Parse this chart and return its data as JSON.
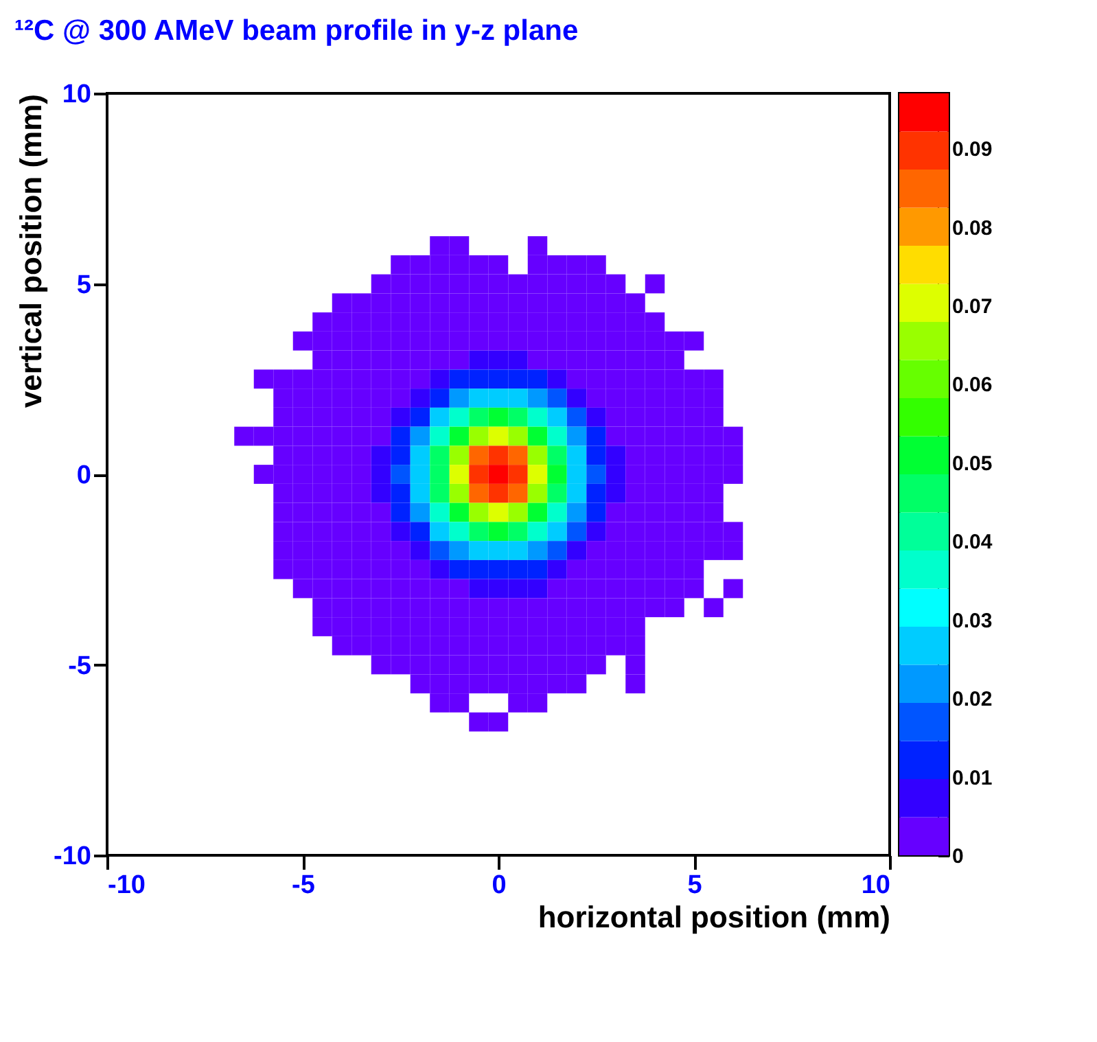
{
  "chart_data": {
    "type": "heatmap",
    "title": "¹²C @ 300 AMeV beam profile in y-z plane",
    "xlabel": "horizontal position (mm)",
    "ylabel": "vertical position (mm)",
    "x": [
      -6.5,
      -6.0,
      -5.5,
      -5.0,
      -4.5,
      -4.0,
      -3.5,
      -3.0,
      -2.5,
      -2.0,
      -1.5,
      -1.0,
      -0.5,
      0.0,
      0.5,
      1.0,
      1.5,
      2.0,
      2.5,
      3.0,
      3.5,
      4.0,
      4.5,
      5.0,
      5.5,
      6.0
    ],
    "y": [
      6.0,
      5.5,
      5.0,
      4.5,
      4.0,
      3.5,
      3.0,
      2.5,
      2.0,
      1.5,
      1.0,
      0.5,
      0.0,
      -0.5,
      -1.0,
      -1.5,
      -2.0,
      -2.5,
      -3.0,
      -3.5,
      -4.0,
      -4.5,
      -5.0,
      -5.5,
      -6.0,
      -6.5
    ],
    "xlim": [
      -10,
      10
    ],
    "xticks": [
      -10,
      -5,
      0,
      5,
      10
    ],
    "ylim": [
      -10,
      10
    ],
    "yticks": [
      -10,
      -5,
      0,
      5,
      10
    ],
    "clim": [
      0,
      0.097
    ],
    "cticks": [
      0,
      0.01,
      0.02,
      0.03,
      0.04,
      0.05,
      0.06,
      0.07,
      0.08,
      0.09
    ],
    "colors": [
      "#6600ff",
      "#3300ff",
      "#0022ff",
      "#0055ff",
      "#0099ff",
      "#00ccff",
      "#00ffff",
      "#00ffcc",
      "#00ff99",
      "#00ff66",
      "#00ff33",
      "#33ff00",
      "#66ff00",
      "#99ff00",
      "#ddff00",
      "#ffdd00",
      "#ff9900",
      "#ff6600",
      "#ff3300",
      "#ff0000"
    ],
    "cells": [
      [
        null,
        null,
        null,
        null,
        null,
        null,
        null,
        null,
        null,
        null,
        0.002,
        0.002,
        null,
        null,
        null,
        0.002,
        null,
        null,
        null,
        null,
        null,
        null,
        null,
        null,
        null,
        null
      ],
      [
        null,
        null,
        null,
        null,
        null,
        null,
        null,
        null,
        0.002,
        0.002,
        0.002,
        0.002,
        0.002,
        0.002,
        null,
        0.002,
        0.002,
        0.002,
        0.002,
        null,
        null,
        null,
        null,
        null,
        null,
        null
      ],
      [
        null,
        null,
        null,
        null,
        null,
        null,
        null,
        0.002,
        0.002,
        0.002,
        0.002,
        0.002,
        0.002,
        0.002,
        0.002,
        0.002,
        0.002,
        0.002,
        0.002,
        0.002,
        null,
        0.002,
        null,
        null,
        null,
        null
      ],
      [
        null,
        null,
        null,
        null,
        null,
        0.002,
        0.002,
        0.002,
        0.002,
        0.002,
        0.002,
        0.002,
        0.002,
        0.002,
        0.002,
        0.002,
        0.002,
        0.002,
        0.002,
        0.002,
        0.002,
        null,
        null,
        null,
        null,
        null
      ],
      [
        null,
        null,
        null,
        null,
        0.002,
        0.002,
        0.002,
        0.002,
        0.002,
        0.002,
        0.002,
        0.002,
        0.002,
        0.002,
        0.002,
        0.002,
        0.002,
        0.002,
        0.002,
        0.002,
        0.002,
        0.002,
        null,
        null,
        null,
        null
      ],
      [
        null,
        null,
        null,
        0.002,
        0.002,
        0.002,
        0.002,
        0.002,
        0.002,
        0.002,
        0.002,
        0.002,
        0.002,
        0.002,
        0.002,
        0.002,
        0.002,
        0.002,
        0.002,
        0.002,
        0.002,
        0.002,
        0.002,
        0.002,
        null,
        null
      ],
      [
        null,
        null,
        null,
        null,
        0.002,
        0.002,
        0.002,
        0.002,
        0.002,
        0.002,
        0.002,
        0.002,
        0.007,
        0.007,
        0.007,
        0.002,
        0.002,
        0.002,
        0.002,
        0.002,
        0.002,
        0.002,
        0.002,
        null,
        null,
        null
      ],
      [
        null,
        0.002,
        0.002,
        0.002,
        0.002,
        0.002,
        0.002,
        0.002,
        0.002,
        0.002,
        0.007,
        0.012,
        0.012,
        0.012,
        0.012,
        0.012,
        0.007,
        0.002,
        0.002,
        0.002,
        0.002,
        0.002,
        0.002,
        0.002,
        0.002,
        null
      ],
      [
        null,
        null,
        0.002,
        0.002,
        0.002,
        0.002,
        0.002,
        0.002,
        0.002,
        0.007,
        0.012,
        0.022,
        0.027,
        0.027,
        0.027,
        0.022,
        0.017,
        0.007,
        0.002,
        0.002,
        0.002,
        0.002,
        0.002,
        0.002,
        0.002,
        null
      ],
      [
        null,
        null,
        0.002,
        0.002,
        0.002,
        0.002,
        0.002,
        0.002,
        0.007,
        0.012,
        0.027,
        0.036,
        0.046,
        0.051,
        0.046,
        0.036,
        0.027,
        0.017,
        0.007,
        0.002,
        0.002,
        0.002,
        0.002,
        0.002,
        0.002,
        null
      ],
      [
        0.002,
        0.002,
        0.002,
        0.002,
        0.002,
        0.002,
        0.002,
        0.002,
        0.012,
        0.022,
        0.036,
        0.051,
        0.065,
        0.07,
        0.065,
        0.051,
        0.036,
        0.022,
        0.012,
        0.002,
        0.002,
        0.002,
        0.002,
        0.002,
        0.002,
        0.002
      ],
      [
        null,
        null,
        0.002,
        0.002,
        0.002,
        0.002,
        0.002,
        0.007,
        0.012,
        0.027,
        0.046,
        0.065,
        0.085,
        0.09,
        0.085,
        0.065,
        0.046,
        0.027,
        0.012,
        0.007,
        0.002,
        0.002,
        0.002,
        0.002,
        0.002,
        0.002
      ],
      [
        null,
        0.002,
        0.002,
        0.002,
        0.002,
        0.002,
        0.002,
        0.007,
        0.017,
        0.027,
        0.046,
        0.07,
        0.09,
        0.095,
        0.09,
        0.07,
        0.051,
        0.027,
        0.017,
        0.007,
        0.002,
        0.002,
        0.002,
        0.002,
        0.002,
        0.002
      ],
      [
        null,
        null,
        0.002,
        0.002,
        0.002,
        0.002,
        0.002,
        0.007,
        0.012,
        0.027,
        0.046,
        0.065,
        0.085,
        0.09,
        0.085,
        0.065,
        0.046,
        0.027,
        0.012,
        0.007,
        0.002,
        0.002,
        0.002,
        0.002,
        0.002,
        null
      ],
      [
        null,
        null,
        0.002,
        0.002,
        0.002,
        0.002,
        0.002,
        0.002,
        0.012,
        0.022,
        0.036,
        0.051,
        0.065,
        0.07,
        0.065,
        0.051,
        0.036,
        0.022,
        0.012,
        0.002,
        0.002,
        0.002,
        0.002,
        0.002,
        0.002,
        null
      ],
      [
        null,
        null,
        0.002,
        0.002,
        0.002,
        0.002,
        0.002,
        0.002,
        0.007,
        0.012,
        0.027,
        0.036,
        0.046,
        0.051,
        0.046,
        0.036,
        0.027,
        0.017,
        0.007,
        0.002,
        0.002,
        0.002,
        0.002,
        0.002,
        0.002,
        0.002
      ],
      [
        null,
        null,
        0.002,
        0.002,
        0.002,
        0.002,
        0.002,
        0.002,
        0.002,
        0.007,
        0.017,
        0.022,
        0.027,
        0.027,
        0.027,
        0.022,
        0.017,
        0.007,
        0.002,
        0.002,
        0.002,
        0.002,
        0.002,
        0.002,
        0.002,
        0.002
      ],
      [
        null,
        null,
        0.002,
        0.002,
        0.002,
        0.002,
        0.002,
        0.002,
        0.002,
        0.002,
        0.007,
        0.012,
        0.012,
        0.012,
        0.012,
        0.012,
        0.007,
        0.002,
        0.002,
        0.002,
        0.002,
        0.002,
        0.002,
        0.002,
        null,
        null
      ],
      [
        null,
        null,
        null,
        0.002,
        0.002,
        0.002,
        0.002,
        0.002,
        0.002,
        0.002,
        0.002,
        0.002,
        0.007,
        0.007,
        0.007,
        0.007,
        0.002,
        0.002,
        0.002,
        0.002,
        0.002,
        0.002,
        0.002,
        0.002,
        null,
        0.002
      ],
      [
        null,
        null,
        null,
        null,
        0.002,
        0.002,
        0.002,
        0.002,
        0.002,
        0.002,
        0.002,
        0.002,
        0.002,
        0.002,
        0.002,
        0.002,
        0.002,
        0.002,
        0.002,
        0.002,
        0.002,
        0.002,
        0.002,
        null,
        0.002,
        null
      ],
      [
        null,
        null,
        null,
        null,
        0.002,
        0.002,
        0.002,
        0.002,
        0.002,
        0.002,
        0.002,
        0.002,
        0.002,
        0.002,
        0.002,
        0.002,
        0.002,
        0.002,
        0.002,
        0.002,
        0.002,
        null,
        null,
        null,
        null,
        null
      ],
      [
        null,
        null,
        null,
        null,
        null,
        0.002,
        0.002,
        0.002,
        0.002,
        0.002,
        0.002,
        0.002,
        0.002,
        0.002,
        0.002,
        0.002,
        0.002,
        0.002,
        0.002,
        0.002,
        0.002,
        null,
        null,
        null,
        null,
        null
      ],
      [
        null,
        null,
        null,
        null,
        null,
        null,
        null,
        0.002,
        0.002,
        0.002,
        0.002,
        0.002,
        0.002,
        0.002,
        0.002,
        0.002,
        0.002,
        0.002,
        0.002,
        null,
        0.002,
        null,
        null,
        null,
        null,
        null
      ],
      [
        null,
        null,
        null,
        null,
        null,
        null,
        null,
        null,
        null,
        0.002,
        0.002,
        0.002,
        0.002,
        0.002,
        0.002,
        0.002,
        0.002,
        0.002,
        null,
        null,
        0.002,
        null,
        null,
        null,
        null,
        null
      ],
      [
        null,
        null,
        null,
        null,
        null,
        null,
        null,
        null,
        null,
        null,
        0.002,
        0.002,
        null,
        null,
        0.002,
        0.002,
        null,
        null,
        null,
        null,
        null,
        null,
        null,
        null,
        null,
        null
      ],
      [
        null,
        null,
        null,
        null,
        null,
        null,
        null,
        null,
        null,
        null,
        null,
        null,
        0.002,
        0.002,
        null,
        null,
        null,
        null,
        null,
        null,
        null,
        null,
        null,
        null,
        null,
        null
      ]
    ]
  }
}
